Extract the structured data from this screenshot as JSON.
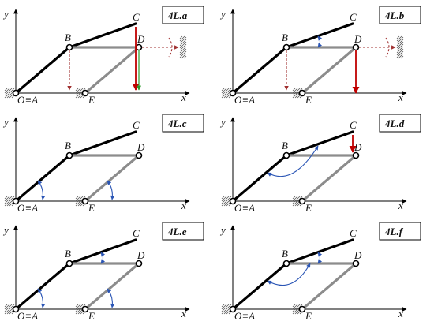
{
  "colors": {
    "link_black": "#000000",
    "link_grey": "#8c8c8c",
    "constraint_red": "#c00000",
    "rotation_blue": "#2a55b5"
  },
  "axis_labels": {
    "y": "y",
    "x": "x"
  },
  "point_labels": {
    "origin": "O≡A",
    "B": "B",
    "C": "C",
    "D": "D",
    "E": "E"
  },
  "panels": [
    {
      "tag": "4L.a"
    },
    {
      "tag": "4L.b"
    },
    {
      "tag": "4L.c"
    },
    {
      "tag": "4L.d"
    },
    {
      "tag": "4L.e"
    },
    {
      "tag": "4L.f"
    }
  ]
}
